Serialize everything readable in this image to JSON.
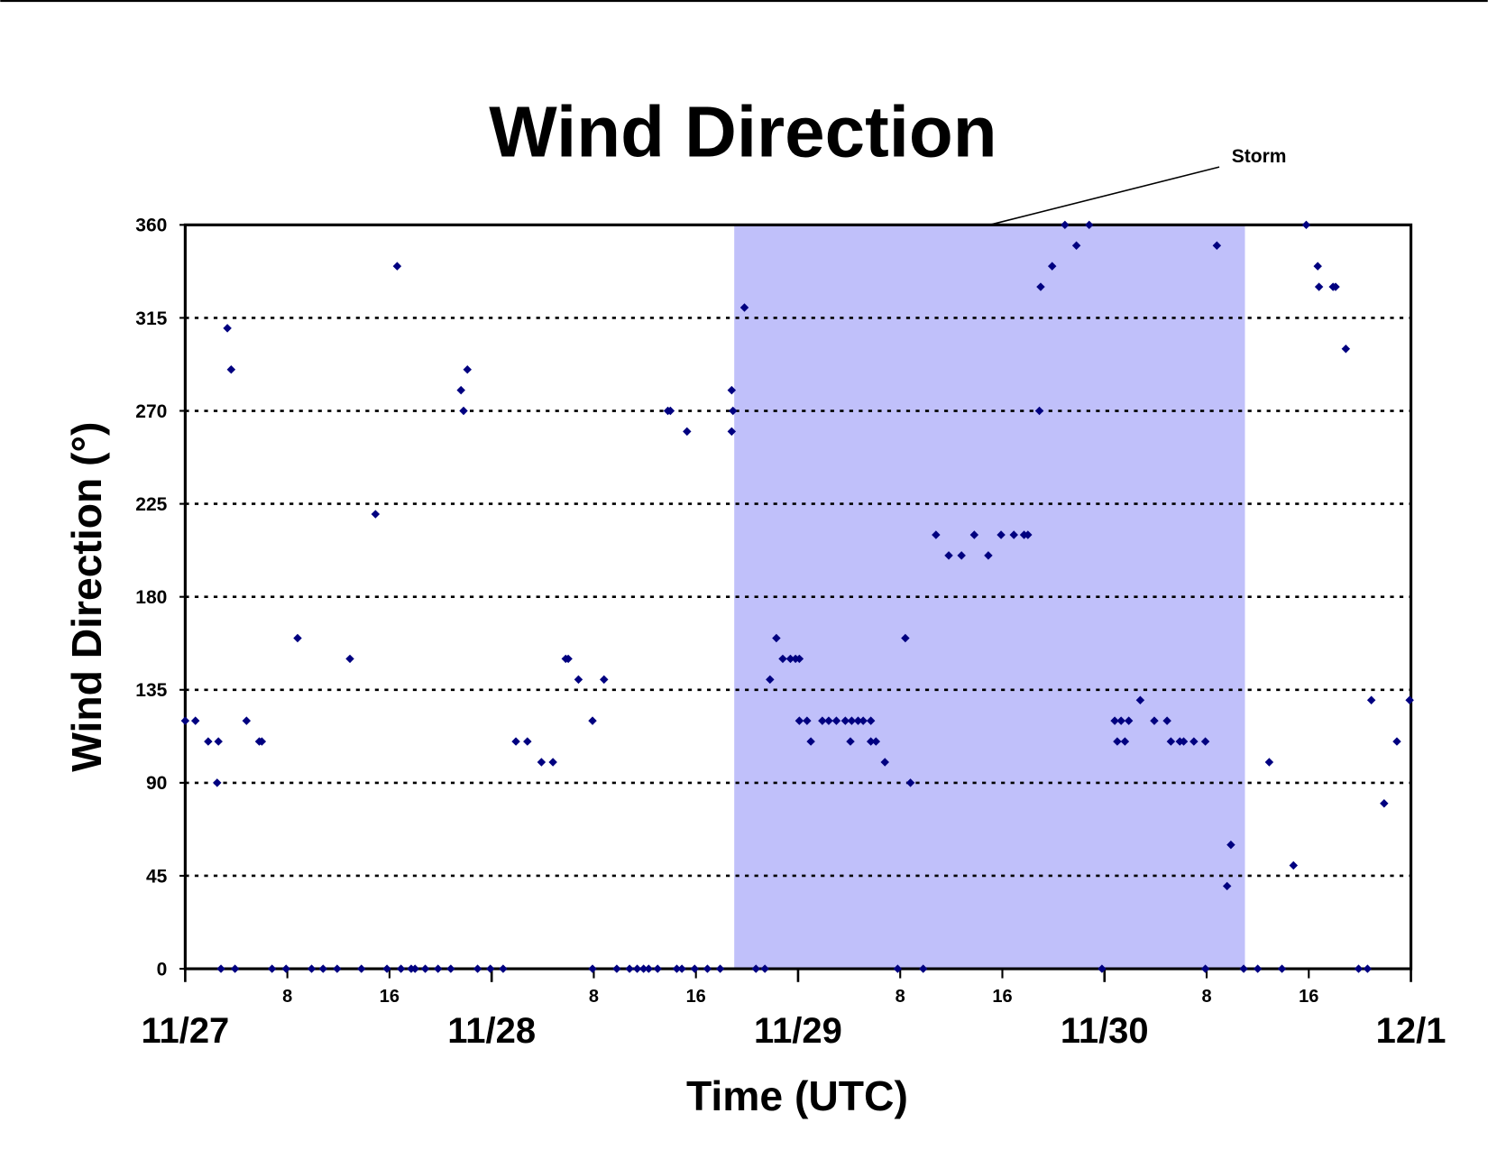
{
  "chart_data": {
    "type": "scatter",
    "title": "Wind Direction",
    "xlabel": "Time (UTC)",
    "ylabel": "Wind Direction (°)",
    "color": "#000080",
    "shade_color": "#c0c0fa",
    "grid": true,
    "xlim": [
      0,
      96
    ],
    "ylim": [
      0,
      360
    ],
    "yticks": [
      0,
      45,
      90,
      135,
      180,
      225,
      270,
      315,
      360
    ],
    "xticks": [
      8,
      16,
      32,
      40,
      56,
      64,
      80,
      88
    ],
    "xtick_labels": [
      "8",
      "16",
      "8",
      "16",
      "8",
      "16",
      "8",
      "16"
    ],
    "date_ticks": [
      {
        "value": 0,
        "label": "11/27"
      },
      {
        "value": 24,
        "label": "11/28"
      },
      {
        "value": 48,
        "label": "11/29"
      },
      {
        "value": 72,
        "label": "11/30"
      },
      {
        "value": 96,
        "label": "12/1"
      }
    ],
    "annotations": [
      {
        "text": "Storm",
        "x": [
          43,
          83
        ]
      }
    ],
    "x": [
      0,
      0.8,
      1.8,
      2.6,
      2.5,
      2.8,
      3.3,
      3.6,
      3.9,
      4.8,
      5.8,
      6.0,
      6.8,
      7.9,
      8.8,
      9.9,
      10.8,
      11.9,
      12.9,
      13.8,
      14.9,
      15.8,
      16.6,
      16.9,
      17.7,
      18.0,
      18.8,
      19.8,
      20.8,
      21.6,
      21.8,
      22.1,
      22.9,
      23.9,
      24.9,
      25.9,
      26.8,
      27.9,
      28.8,
      29.8,
      30.0,
      30.8,
      31.9,
      31.9,
      32.8,
      33.8,
      34.8,
      35.4,
      35.9,
      36.3,
      37.0,
      37.8,
      38.0,
      38.5,
      38.9,
      39.3,
      39.9,
      40.9,
      41.9,
      42.8,
      42.9,
      42.8,
      43.8,
      44.7,
      45.4,
      45.8,
      46.3,
      46.8,
      47.4,
      47.8,
      48.1,
      48.1,
      48.7,
      49.0,
      49.9,
      50.4,
      51.0,
      51.7,
      52.1,
      52.2,
      52.7,
      53.1,
      53.7,
      53.7,
      54.1,
      54.8,
      55.8,
      56.4,
      56.8,
      57.8,
      58.8,
      59.8,
      60.8,
      61.8,
      62.9,
      63.9,
      64.9,
      65.7,
      66.0,
      66.9,
      67.0,
      67.9,
      68.9,
      69.8,
      70.8,
      71.8,
      72.8,
      73.0,
      73.3,
      73.6,
      73.9,
      74.8,
      75.9,
      76.9,
      77.2,
      77.9,
      78.2,
      79.0,
      79.9,
      79.9,
      80.8,
      81.6,
      81.9,
      82.9,
      84.0,
      84.9,
      85.9,
      86.8,
      87.8,
      88.7,
      88.8,
      89.9,
      90.1,
      90.9,
      91.9,
      92.6,
      92.9,
      93.9,
      94.9,
      95.9
    ],
    "values": [
      120,
      120,
      110,
      110,
      90,
      0,
      310,
      290,
      0,
      120,
      110,
      110,
      0,
      0,
      160,
      0,
      0,
      0,
      150,
      0,
      220,
      0,
      340,
      0,
      0,
      0,
      0,
      0,
      0,
      280,
      270,
      290,
      0,
      0,
      0,
      110,
      110,
      100,
      100,
      150,
      150,
      140,
      120,
      0,
      140,
      0,
      0,
      0,
      0,
      0,
      0,
      270,
      270,
      0,
      0,
      260,
      0,
      0,
      0,
      280,
      270,
      260,
      320,
      0,
      0,
      140,
      160,
      150,
      150,
      150,
      150,
      120,
      120,
      110,
      120,
      120,
      120,
      120,
      110,
      120,
      120,
      120,
      120,
      110,
      110,
      100,
      0,
      160,
      90,
      0,
      210,
      200,
      200,
      210,
      200,
      210,
      210,
      210,
      210,
      270,
      330,
      340,
      360,
      350,
      360,
      0,
      120,
      110,
      120,
      110,
      120,
      130,
      120,
      120,
      110,
      110,
      110,
      110,
      110,
      0,
      350,
      40,
      60,
      0,
      0,
      100,
      0,
      50,
      360,
      340,
      330,
      330,
      330,
      300,
      0,
      0,
      130,
      80,
      110,
      130
    ]
  }
}
